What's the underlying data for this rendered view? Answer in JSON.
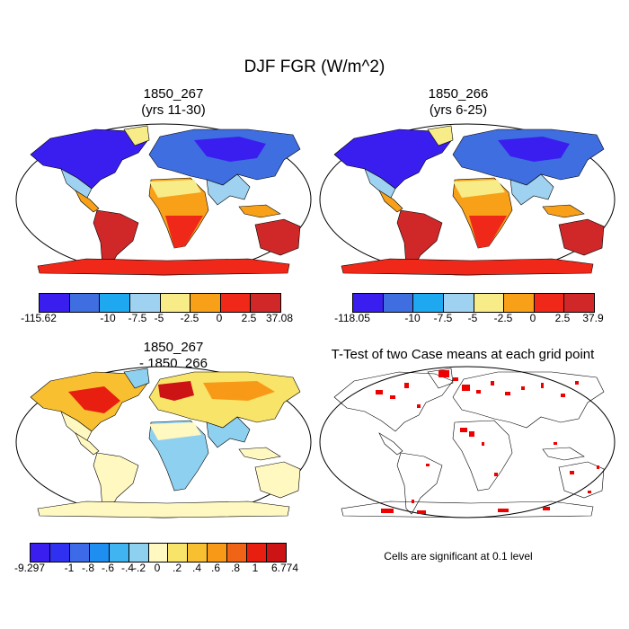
{
  "title": "DJF FGR (W/m^2)",
  "panels": [
    {
      "title_line1": "1850_267",
      "title_line2": "(yrs 11-30)"
    },
    {
      "title_line1": "1850_266",
      "title_line2": "(yrs 6-25)"
    },
    {
      "title_line1": "1850_267",
      "title_line2": "- 1850_266"
    },
    {
      "title_line1": "T-Test of two Case means at each grid point",
      "title_line2": ""
    }
  ],
  "note": "Cells are significant at 0.1 level",
  "colors": {
    "abs_scale": [
      "#3a1ef0",
      "#3f6ee0",
      "#1ea8f0",
      "#9ed2f0",
      "#f8ec88",
      "#f8a018",
      "#f0281a",
      "#d02828"
    ],
    "diff_scale": [
      "#3a1ef0",
      "#3030f0",
      "#3c6ae8",
      "#1e8ef0",
      "#40b4f0",
      "#8ed0f0",
      "#fff8c0",
      "#f8e468",
      "#f8c030",
      "#f89a18",
      "#f06418",
      "#e81e10",
      "#cc1414"
    ],
    "significant": "#ee0000"
  },
  "chart_data": [
    {
      "type": "heatmap",
      "projection": "robinson",
      "field": "DJF FGR (W/m^2)",
      "title": "1850_267 (yrs 11-30)",
      "colorbar_labels": [
        "-115.62",
        "-10",
        "-7.5",
        "-5",
        "-2.5",
        "0",
        "2.5",
        "37.08"
      ],
      "data_range": [
        -115.62,
        37.08
      ]
    },
    {
      "type": "heatmap",
      "projection": "robinson",
      "field": "DJF FGR (W/m^2)",
      "title": "1850_266 (yrs 6-25)",
      "colorbar_labels": [
        "-118.05",
        "-10",
        "-7.5",
        "-5",
        "-2.5",
        "0",
        "2.5",
        "37.9"
      ],
      "data_range": [
        -118.05,
        37.9
      ]
    },
    {
      "type": "heatmap",
      "projection": "robinson",
      "field": "DJF FGR (W/m^2)",
      "title": "1850_267 - 1850_266",
      "colorbar_labels": [
        "-9.297",
        "-1",
        "-.8",
        "-.6",
        "-.4",
        "-.2",
        "0",
        ".2",
        ".4",
        ".6",
        ".8",
        "1",
        "6.774"
      ],
      "data_range": [
        -9.297,
        6.774
      ]
    },
    {
      "type": "heatmap",
      "projection": "robinson",
      "title": "T-Test of two Case means at each grid point",
      "significance_level": 0.1
    }
  ]
}
